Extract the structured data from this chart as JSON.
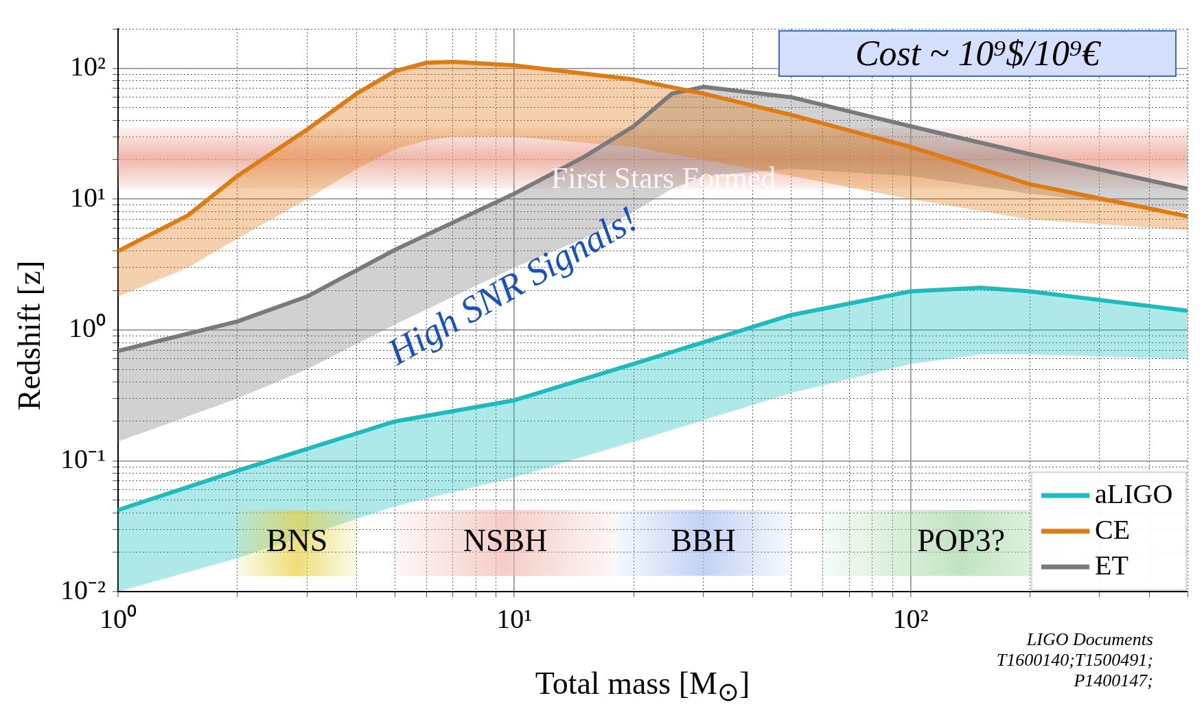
{
  "chart_data": {
    "type": "line",
    "xlabel": "Total mass [M$_{⊙}$]",
    "ylabel": "Redshift [z]",
    "log": "xy",
    "grid": true,
    "legend": "bottom right",
    "marker": "none",
    "line_style": "solid",
    "xlim": [
      1,
      500
    ],
    "ylim": [
      0.01,
      200
    ],
    "xticks": [
      {
        "value": 1,
        "label": "10⁰"
      },
      {
        "value": 2,
        "label": null
      },
      {
        "value": 3,
        "label": null
      },
      {
        "value": 4,
        "label": null
      },
      {
        "value": 5,
        "label": null
      },
      {
        "value": 6,
        "label": null
      },
      {
        "value": 7,
        "label": null
      },
      {
        "value": 8,
        "label": null
      },
      {
        "value": 9,
        "label": null
      },
      {
        "value": 10,
        "label": "10¹"
      },
      {
        "value": 20,
        "label": null
      },
      {
        "value": 30,
        "label": null
      },
      {
        "value": 40,
        "label": null
      },
      {
        "value": 50,
        "label": null
      },
      {
        "value": 60,
        "label": null
      },
      {
        "value": 70,
        "label": null
      },
      {
        "value": 80,
        "label": null
      },
      {
        "value": 90,
        "label": null
      },
      {
        "value": 100,
        "label": "10²"
      },
      {
        "value": 200,
        "label": null
      },
      {
        "value": 300,
        "label": null
      },
      {
        "value": 400,
        "label": null
      },
      {
        "value": 500,
        "label": null
      }
    ],
    "yticks": [
      {
        "value": 0.01,
        "label": "10⁻²"
      },
      {
        "value": 0.02,
        "label": null
      },
      {
        "value": 0.03,
        "label": null
      },
      {
        "value": 0.04,
        "label": null
      },
      {
        "value": 0.05,
        "label": null
      },
      {
        "value": 0.06,
        "label": null
      },
      {
        "value": 0.07,
        "label": null
      },
      {
        "value": 0.08,
        "label": null
      },
      {
        "value": 0.09,
        "label": null
      },
      {
        "value": 0.1,
        "label": "10⁻¹"
      },
      {
        "value": 0.2,
        "label": null
      },
      {
        "value": 0.3,
        "label": null
      },
      {
        "value": 0.4,
        "label": null
      },
      {
        "value": 0.5,
        "label": null
      },
      {
        "value": 0.6,
        "label": null
      },
      {
        "value": 0.7,
        "label": null
      },
      {
        "value": 0.8,
        "label": null
      },
      {
        "value": 0.9,
        "label": null
      },
      {
        "value": 1,
        "label": "10⁰"
      },
      {
        "value": 2,
        "label": null
      },
      {
        "value": 3,
        "label": null
      },
      {
        "value": 4,
        "label": null
      },
      {
        "value": 5,
        "label": null
      },
      {
        "value": 6,
        "label": null
      },
      {
        "value": 7,
        "label": null
      },
      {
        "value": 8,
        "label": null
      },
      {
        "value": 9,
        "label": null
      },
      {
        "value": 10,
        "label": "10¹"
      },
      {
        "value": 20,
        "label": null
      },
      {
        "value": 30,
        "label": null
      },
      {
        "value": 40,
        "label": null
      },
      {
        "value": 50,
        "label": null
      },
      {
        "value": 60,
        "label": null
      },
      {
        "value": 70,
        "label": null
      },
      {
        "value": 80,
        "label": null
      },
      {
        "value": 90,
        "label": null
      },
      {
        "value": 100,
        "label": "10²"
      },
      {
        "value": 200,
        "label": null
      }
    ],
    "series": [
      {
        "name": "aLIGO",
        "color": "#1bbcbc",
        "x": [
          1,
          2,
          5,
          10,
          20,
          50,
          100,
          150,
          200,
          500
        ],
        "values": [
          0.042,
          0.084,
          0.2,
          0.29,
          0.55,
          1.3,
          1.97,
          2.1,
          1.97,
          1.4
        ],
        "lower": [
          0.01,
          0.018,
          0.045,
          0.075,
          0.14,
          0.33,
          0.55,
          0.65,
          0.65,
          0.6
        ],
        "upper": [
          0.042,
          0.084,
          0.2,
          0.29,
          0.55,
          1.3,
          1.97,
          2.1,
          1.97,
          1.4
        ]
      },
      {
        "name": "CE",
        "color": "#e07b10",
        "x": [
          1,
          1.5,
          2,
          3,
          4,
          5,
          6,
          7,
          10,
          20,
          30,
          50,
          100,
          200,
          500
        ],
        "values": [
          4,
          7.5,
          15,
          34,
          64,
          95,
          110,
          112,
          105,
          82,
          64,
          44,
          25,
          13,
          7.4
        ],
        "lower": [
          1.8,
          3,
          5,
          10,
          17,
          24,
          28,
          30,
          30,
          25,
          20,
          15,
          10,
          7,
          5.8
        ],
        "upper": [
          4,
          7.5,
          15,
          34,
          64,
          95,
          110,
          112,
          105,
          82,
          64,
          44,
          25,
          13,
          7.4
        ]
      },
      {
        "name": "ET",
        "color": "#7a7a7a",
        "x": [
          1,
          2,
          3,
          5,
          10,
          15,
          20,
          25,
          30,
          50,
          100,
          200,
          500
        ],
        "values": [
          0.69,
          1.16,
          1.8,
          4.1,
          11,
          21,
          36,
          64,
          72,
          60,
          36,
          22,
          12
        ],
        "lower": [
          0.14,
          0.3,
          0.5,
          1.1,
          3,
          5,
          8,
          12,
          15,
          17,
          15,
          11,
          8
        ],
        "upper": [
          0.69,
          1.16,
          1.8,
          4.1,
          11,
          21,
          36,
          64,
          72,
          60,
          36,
          22,
          12
        ]
      }
    ],
    "bands": [
      {
        "axis": "y",
        "from": 12,
        "to": 35,
        "label": "First Stars Formed",
        "color": "#e8a090"
      },
      {
        "axis": "x",
        "from": 2,
        "to": 4,
        "label": "BNS",
        "color": "#e6d040"
      },
      {
        "axis": "x",
        "from": 5,
        "to": 18,
        "label": "NSBH",
        "color": "#f0b8b0"
      },
      {
        "axis": "x",
        "from": 18,
        "to": 50,
        "label": "BBH",
        "color": "#a8c0f0"
      },
      {
        "axis": "x",
        "from": 60,
        "to": 300,
        "label": "POP3?",
        "color": "#a8d8a8"
      }
    ],
    "annotations": [
      "Cost ~ 10⁹$/10⁹€",
      "High SNR Signals!",
      "LIGO Documents T1600140;T1500491; P1400147;"
    ]
  }
}
